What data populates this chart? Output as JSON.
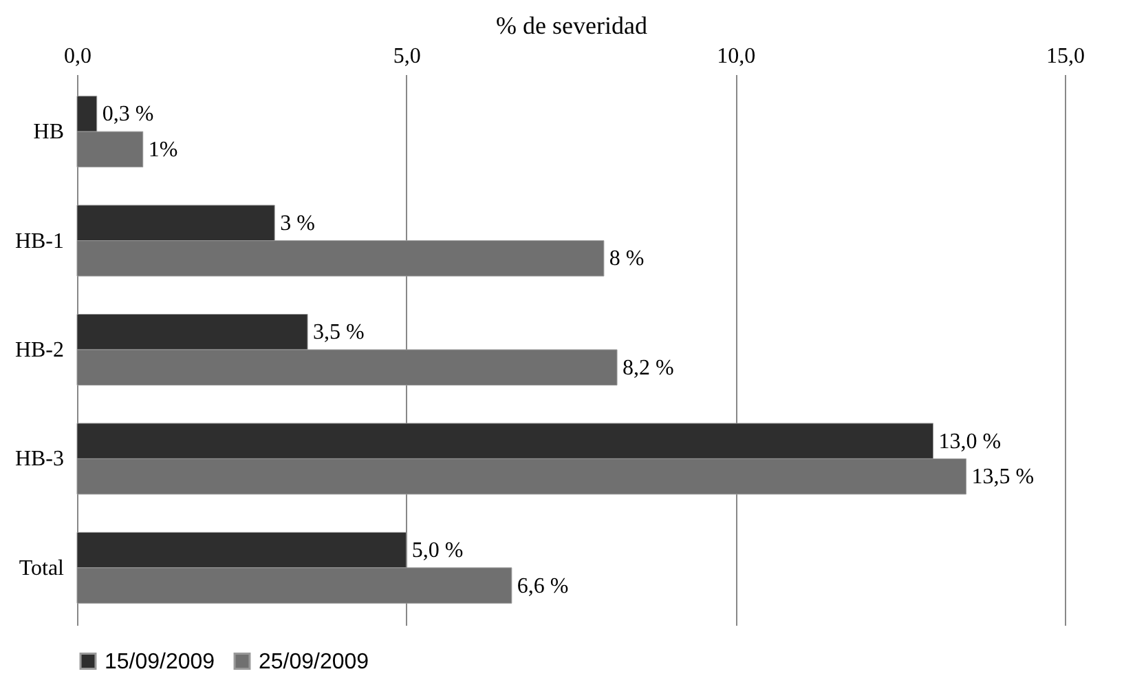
{
  "chart_data": {
    "type": "bar",
    "orientation": "horizontal",
    "xlabel": "% de severidad",
    "categories": [
      "HB",
      "HB-1",
      "HB-2",
      "HB-3",
      "Total"
    ],
    "series": [
      {
        "name": "15/09/2009",
        "color": "#2e2e2e",
        "values": [
          0.3,
          3,
          3.5,
          13.0,
          5.0
        ],
        "value_labels": [
          "0,3 %",
          "3 %",
          "3,5 %",
          "13,0 %",
          "5,0 %"
        ]
      },
      {
        "name": "25/09/2009",
        "color": "#707070",
        "values": [
          1,
          8,
          8.2,
          13.5,
          6.6
        ],
        "value_labels": [
          "1%",
          "8 %",
          "8,2 %",
          "13,5 %",
          "6,6 %"
        ]
      }
    ],
    "xlim": [
      0,
      15
    ],
    "xticks": [
      {
        "value": 0,
        "label": "0,0"
      },
      {
        "value": 5,
        "label": "5,0"
      },
      {
        "value": 10,
        "label": "10,0"
      },
      {
        "value": 15,
        "label": "15,0"
      }
    ],
    "grid": "x",
    "legend": "bottom"
  }
}
